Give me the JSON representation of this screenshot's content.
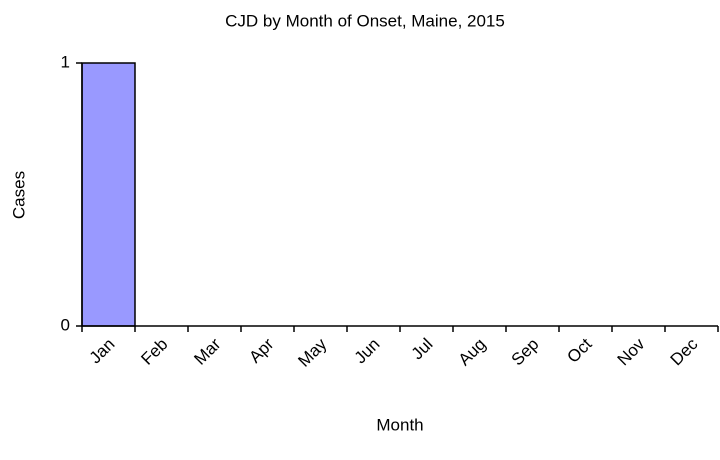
{
  "chart_data": {
    "type": "bar",
    "title": "CJD by Month of Onset, Maine, 2015",
    "x_label": "Month",
    "y_label": "Cases",
    "categories": [
      "Jan",
      "Feb",
      "Mar",
      "Apr",
      "May",
      "Jun",
      "Jul",
      "Aug",
      "Sep",
      "Oct",
      "Nov",
      "Dec"
    ],
    "values": [
      1,
      0,
      0,
      0,
      0,
      0,
      0,
      0,
      0,
      0,
      0,
      0
    ],
    "color": "#9999ff",
    "ylim": [
      0,
      1
    ],
    "yticks": [
      0,
      1
    ],
    "grid": false
  }
}
